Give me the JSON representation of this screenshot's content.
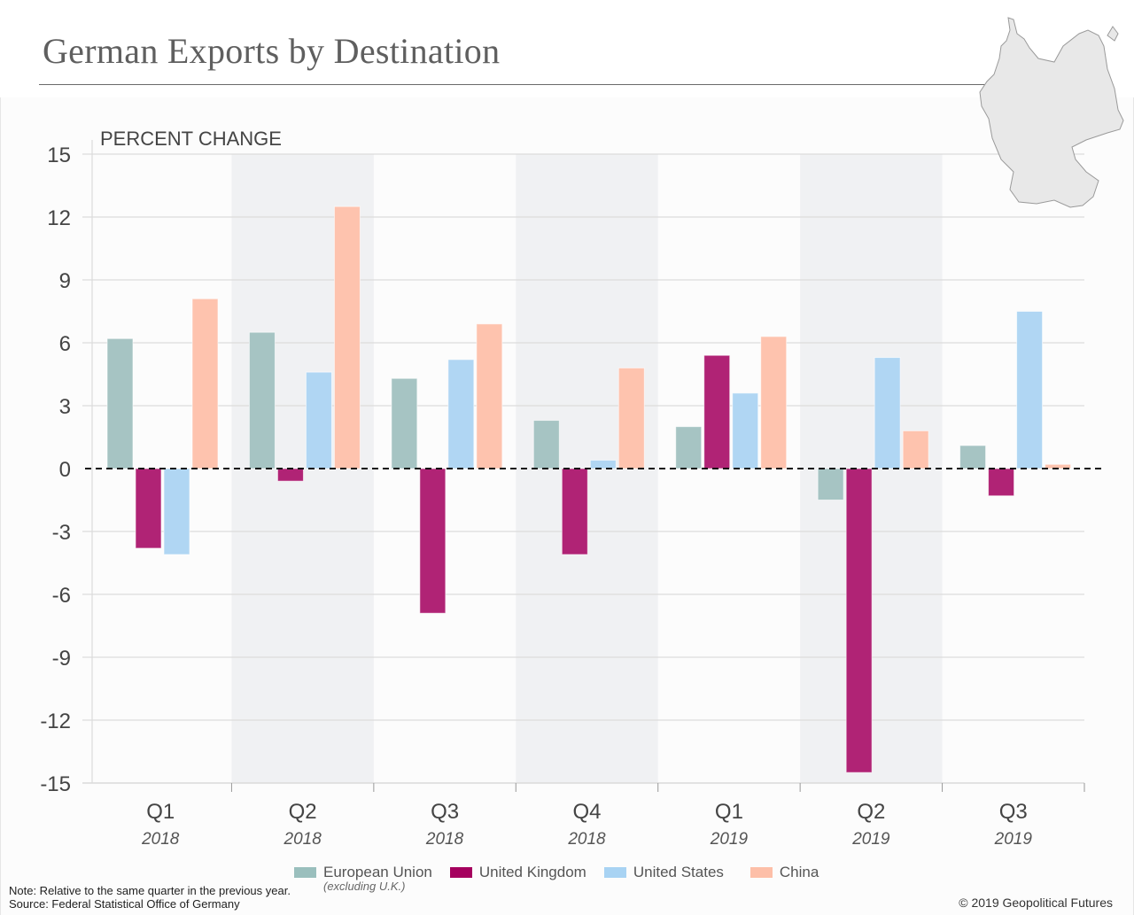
{
  "title": "German Exports by Destination",
  "map_icon": "germany-map-icon",
  "chart_data": {
    "type": "bar",
    "title": "German Exports by Destination",
    "ylabel": "PERCENT CHANGE",
    "xlabel": "",
    "ylim": [
      -15,
      15
    ],
    "yticks": [
      15,
      12,
      9,
      6,
      3,
      0,
      -3,
      -6,
      -9,
      -12,
      -15
    ],
    "grid": true,
    "zero_line": "dashed",
    "legend_position": "bottom",
    "categories": [
      {
        "quarter": "Q1",
        "year": "2018"
      },
      {
        "quarter": "Q2",
        "year": "2018"
      },
      {
        "quarter": "Q3",
        "year": "2018"
      },
      {
        "quarter": "Q4",
        "year": "2018"
      },
      {
        "quarter": "Q1",
        "year": "2019"
      },
      {
        "quarter": "Q2",
        "year": "2019"
      },
      {
        "quarter": "Q3",
        "year": "2019"
      }
    ],
    "series": [
      {
        "name": "European Union",
        "sub": "(excluding U.K.)",
        "color": "#a6c4c3",
        "values": [
          6.2,
          6.5,
          4.3,
          2.3,
          2.0,
          -1.5,
          1.1
        ]
      },
      {
        "name": "United Kingdom",
        "sub": "",
        "color": "#b02375",
        "values": [
          -3.8,
          -0.6,
          -6.9,
          -4.1,
          5.4,
          -14.5,
          -1.3
        ]
      },
      {
        "name": "United States",
        "sub": "",
        "color": "#b0d6f3",
        "values": [
          -4.1,
          4.6,
          5.2,
          0.4,
          3.6,
          5.3,
          7.5
        ]
      },
      {
        "name": "China",
        "sub": "",
        "color": "#fec3ae",
        "values": [
          8.1,
          12.5,
          6.9,
          4.8,
          6.3,
          1.8,
          0.2
        ]
      }
    ]
  },
  "legend_swatch_colors": [
    "#9abfbd",
    "#a5005e",
    "#a8d3f3",
    "#fdbfa8"
  ],
  "footer": {
    "note": "Note: Relative to the same quarter in the previous year.",
    "source": "Source: Federal Statistical Office of Germany",
    "copyright": "© 2019 Geopolitical Futures"
  }
}
